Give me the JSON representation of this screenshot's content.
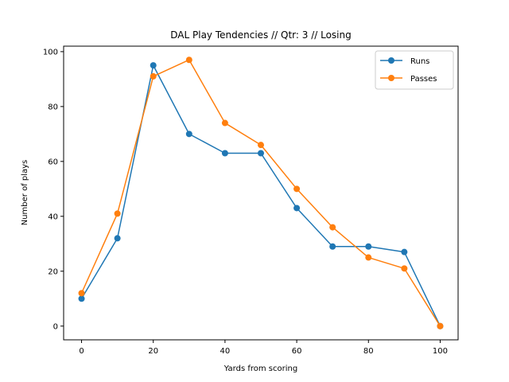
{
  "chart_data": {
    "type": "line",
    "title": "DAL Play Tendencies // Qtr: 3 // Losing",
    "xlabel": "Yards from scoring",
    "ylabel": "Number of plays",
    "xlim": [
      -5,
      105
    ],
    "ylim": [
      -5,
      102
    ],
    "xticks": [
      0,
      20,
      40,
      60,
      80,
      100
    ],
    "yticks": [
      0,
      20,
      40,
      60,
      80,
      100
    ],
    "grid": false,
    "legend_position": "top-right",
    "x": [
      0,
      10,
      20,
      30,
      40,
      50,
      60,
      70,
      80,
      90,
      100
    ],
    "series": [
      {
        "name": "Runs",
        "color": "#1f77b4",
        "values": [
          10,
          32,
          95,
          70,
          63,
          63,
          43,
          29,
          29,
          27,
          0
        ]
      },
      {
        "name": "Passes",
        "color": "#ff7f0e",
        "values": [
          12,
          41,
          91,
          97,
          74,
          66,
          50,
          36,
          25,
          21,
          0
        ]
      }
    ]
  }
}
